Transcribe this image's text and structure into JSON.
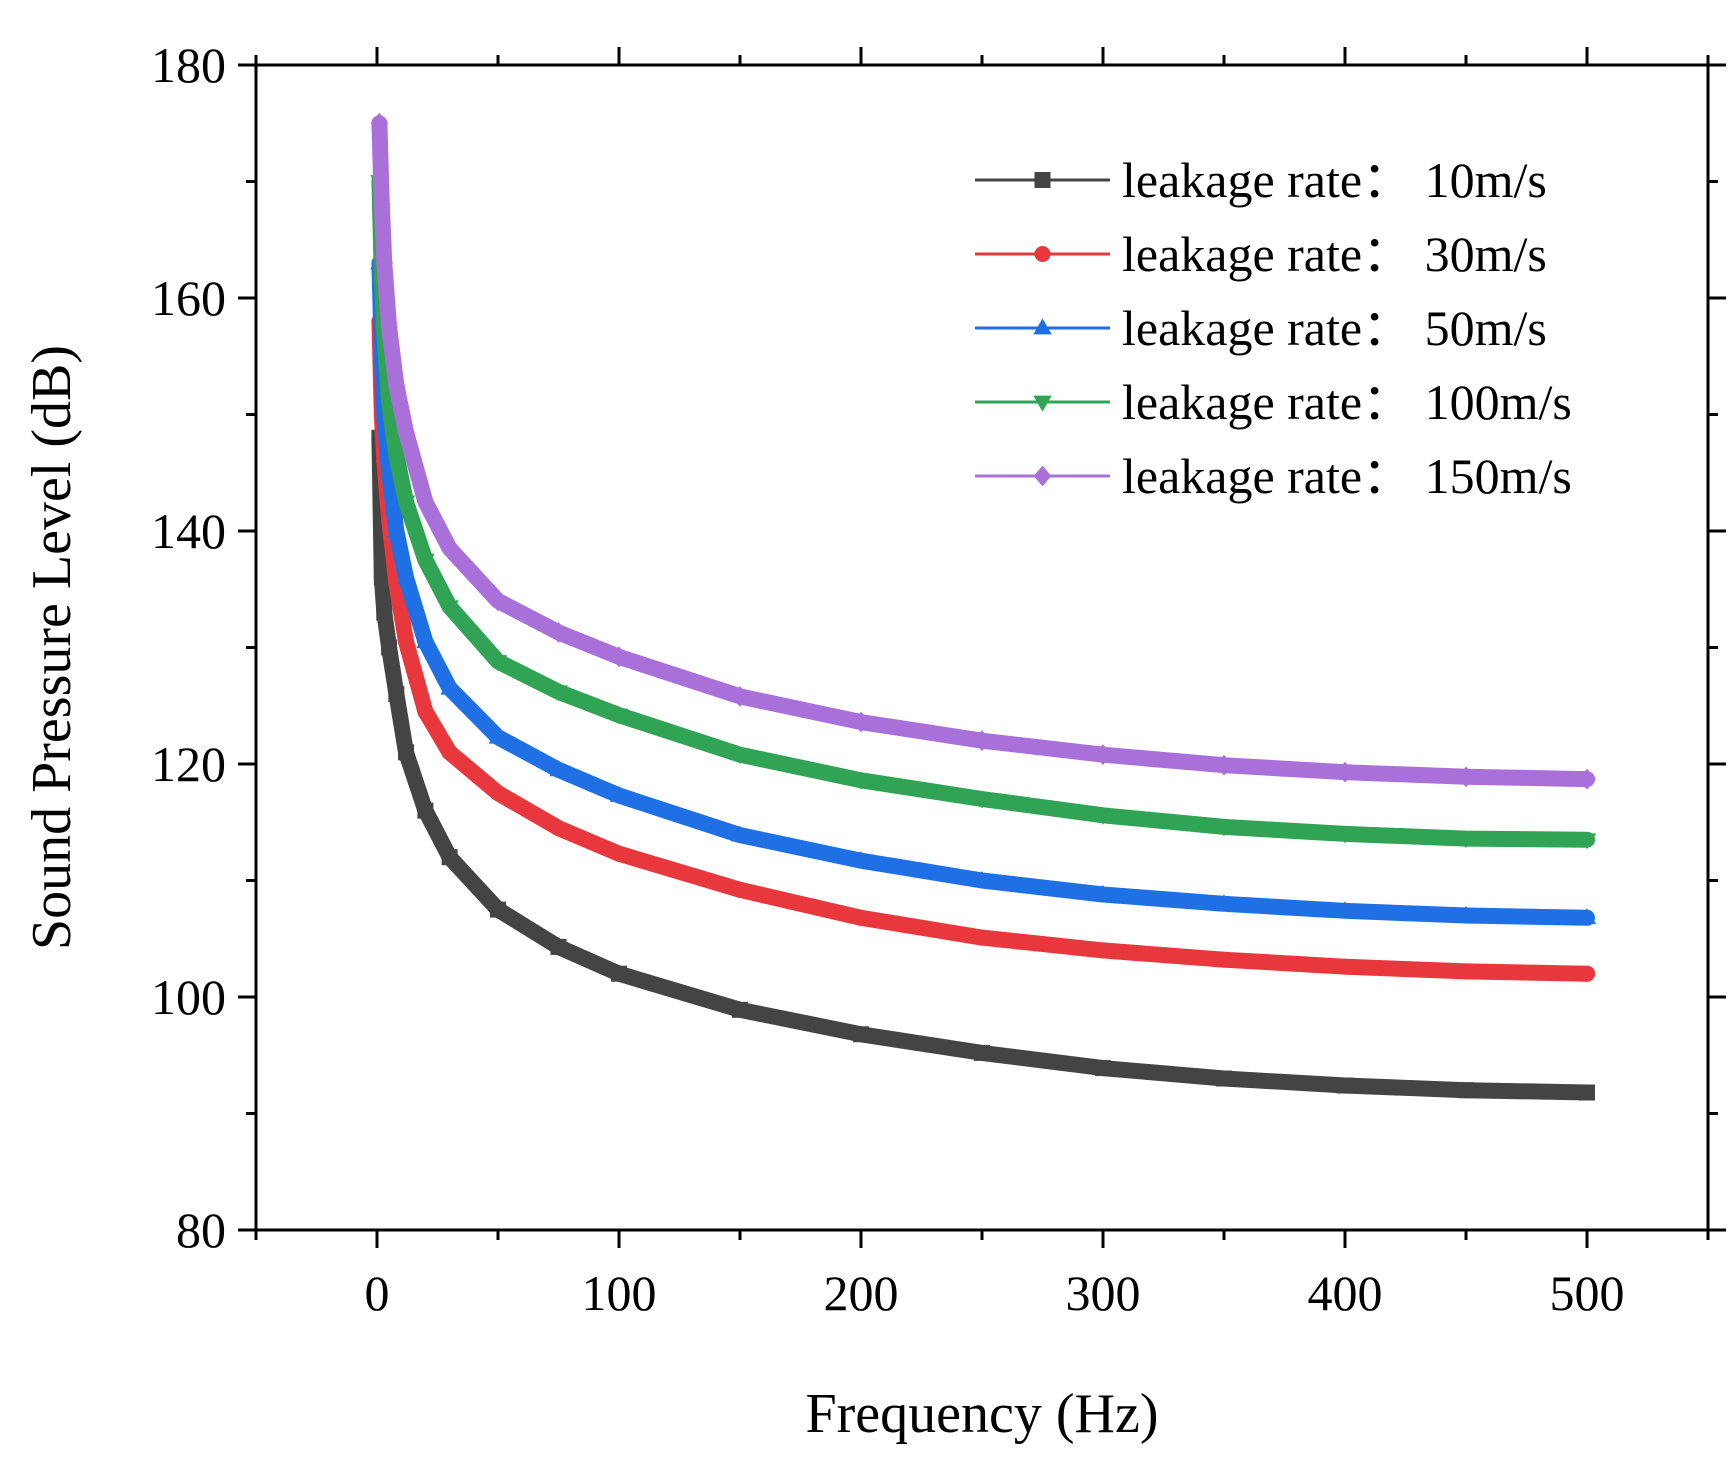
{
  "chart_data": {
    "type": "line",
    "title": "",
    "xlabel": "Frequency (Hz)",
    "ylabel": "Sound Pressure Level (dB)",
    "xlim": [
      -50,
      550
    ],
    "ylim": [
      80,
      180
    ],
    "xticks": [
      "0",
      "100",
      "200",
      "300",
      "400",
      "500"
    ],
    "yticks": [
      "80",
      "100",
      "120",
      "140",
      "160",
      "180"
    ],
    "legend_position": "top-right",
    "x": [
      1,
      2,
      3,
      5,
      8,
      12,
      20,
      30,
      50,
      75,
      100,
      150,
      200,
      250,
      300,
      350,
      400,
      450,
      500
    ],
    "series": [
      {
        "name": "leakage rate：  10m/s",
        "color": "#444444",
        "marker": "square",
        "values": [
          148,
          136,
          133,
          130,
          126,
          121,
          116,
          112,
          107.5,
          104.3,
          102,
          98.9,
          96.8,
          95.2,
          93.9,
          93.0,
          92.4,
          92.0,
          91.8
        ]
      },
      {
        "name": "leakage rate：  30m/s",
        "color": "#e8383d",
        "marker": "circle",
        "values": [
          158,
          150,
          146,
          141,
          135.5,
          130.5,
          124.5,
          121,
          117.5,
          114.5,
          112.3,
          109.2,
          106.8,
          105.1,
          104.0,
          103.2,
          102.6,
          102.2,
          102.0
        ]
      },
      {
        "name": "leakage rate：  50m/s",
        "color": "#1f6fe5",
        "marker": "triangle-up",
        "values": [
          163,
          155,
          150,
          145,
          140,
          136,
          130.5,
          126.5,
          122.3,
          119.5,
          117.3,
          113.9,
          111.7,
          110.0,
          108.8,
          108.0,
          107.4,
          107.0,
          106.8
        ]
      },
      {
        "name": "leakage rate：  100m/s",
        "color": "#31a354",
        "marker": "triangle-down",
        "values": [
          170,
          162,
          157,
          151,
          146.5,
          142.5,
          137.5,
          133.5,
          128.8,
          126.2,
          124.2,
          120.8,
          118.6,
          117.0,
          115.6,
          114.6,
          114.0,
          113.6,
          113.5
        ]
      },
      {
        "name": "leakage rate：  150m/s",
        "color": "#a970d9",
        "marker": "diamond",
        "values": [
          175,
          168,
          163,
          157.5,
          152.5,
          148.5,
          142.5,
          138.5,
          134.0,
          131.3,
          129.2,
          125.8,
          123.6,
          122.0,
          120.8,
          119.9,
          119.3,
          118.9,
          118.7
        ]
      }
    ]
  }
}
